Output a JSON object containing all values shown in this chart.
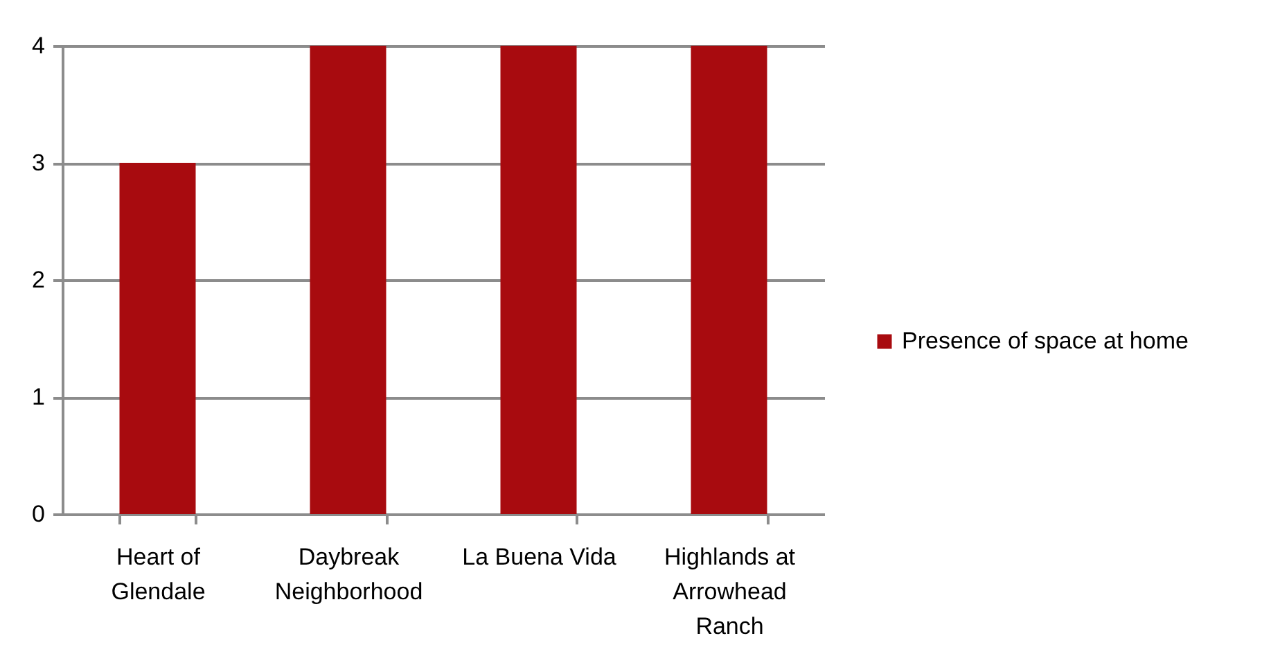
{
  "chart_data": {
    "type": "bar",
    "categories": [
      "Heart of Glendale",
      "Daybreak Neighborhood",
      "La Buena Vida",
      "Highlands at Arrowhead Ranch"
    ],
    "series": [
      {
        "name": "Presence of space at home",
        "color": "#a80b0f",
        "values": [
          3,
          4,
          4,
          4
        ]
      }
    ],
    "ylim": [
      0,
      4
    ],
    "yticks": [
      0,
      1,
      2,
      3,
      4
    ],
    "grid": "y",
    "legend": "right"
  }
}
